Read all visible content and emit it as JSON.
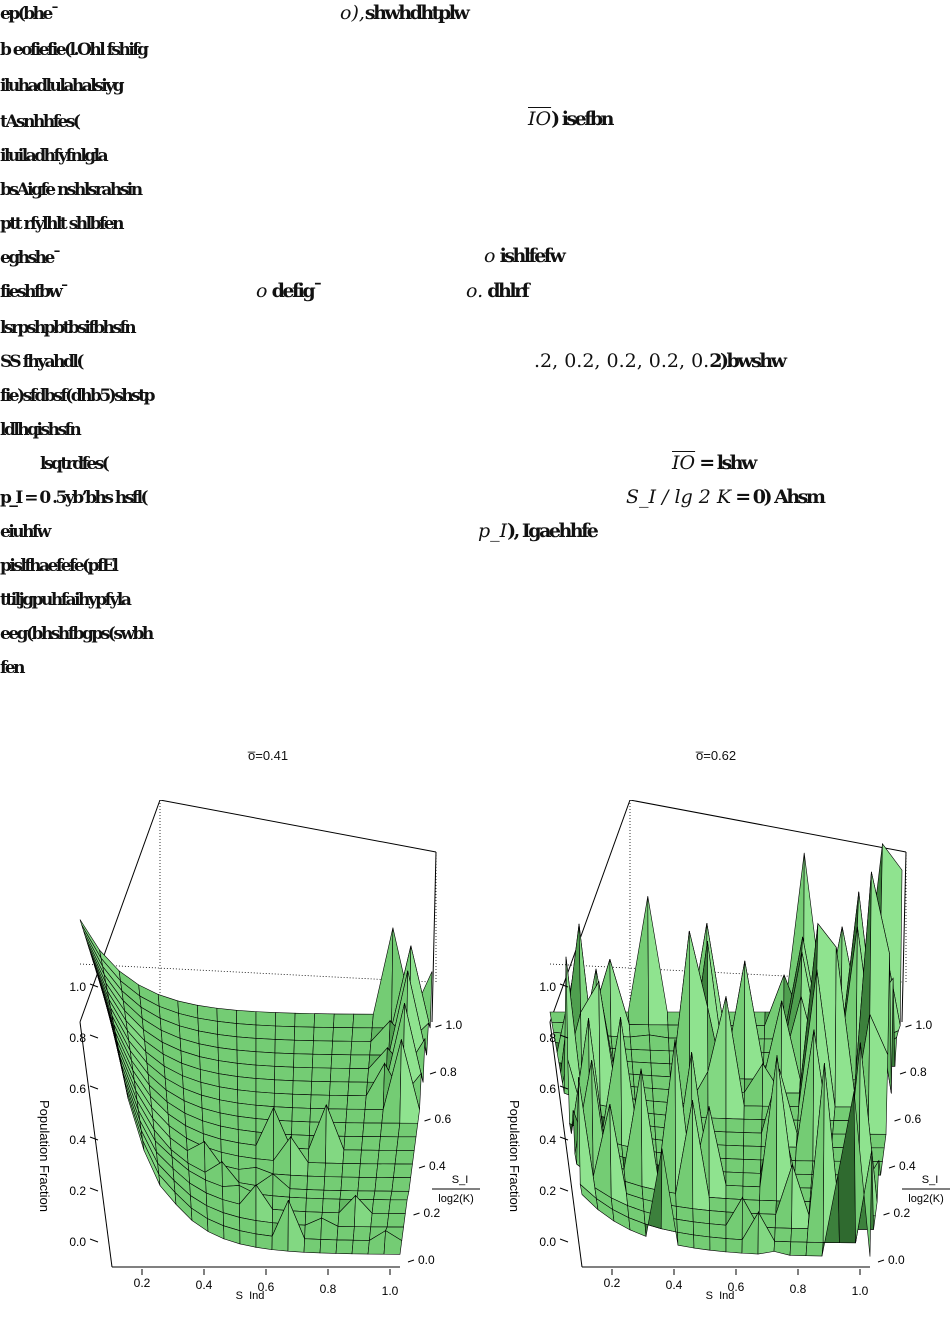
{
  "text_lines": [
    "ep(bhe¯",
    "b eofiefie(l.Ohl fshifg",
    "iluhadlulahalsiyg",
    "tAsnhhfes(",
    "iluiladhfyfnlgla",
    "bsAigfe nshlsrahsin",
    "ptt rfylhlt shlbfen",
    "eghshe¯",
    "fieshfbw¯",
    "lsrpshpbtbsifbhsfn",
    "SS fhyahdl(",
    "fie)sfdbsf(dhb5)shstp",
    "ldlhqishsfn",
    "lsqtrdfes(",
    "p_I = 0   .5yb’bhs hsfl(",
    "eiuhfw",
    "pislfhaefefe(pfEl",
    "ttiljgpuhfaihypfyla",
    "eeg(bhshfbgps(swbh",
    "fen"
  ],
  "math_spans": [
    {
      "prefix": "o),",
      "text": "shwhdhtplw"
    },
    {
      "prefix": "IO",
      "text": ") isefbn"
    },
    {
      "prefix": "o",
      "text": " ishlfefw"
    },
    {
      "prefix": "o",
      "text": " defig¯"
    },
    {
      "prefix": "o.",
      "text": " dhlrf"
    },
    {
      "prefix": ".2, 0.2, 0.2, 0.2, 0.",
      "text": "2)bwshw"
    },
    {
      "prefix": "IO",
      "text": " = lshw"
    },
    {
      "prefix": "S_I / lg  2 K",
      "text": " = 0) Ahsm"
    },
    {
      "prefix": "p_I",
      "text": "), Igaehhfe"
    }
  ],
  "charts": [
    {
      "title": "o̅=0.41",
      "zlabel": "Population Fraction",
      "xlabel_num": "S_Ind",
      "xlabel_den": "log2(K)",
      "ylabel_num": "S_I",
      "ylabel_den": "log2(K)",
      "z_ticks": [
        "0.0",
        "0.2",
        "0.4",
        "0.6",
        "0.8",
        "1.0"
      ],
      "x_ticks": [
        "0.2",
        "0.4",
        "0.6",
        "0.8",
        "1.0"
      ],
      "y_ticks": [
        "0.0",
        "0.2",
        "0.4",
        "0.6",
        "0.8",
        "1.0"
      ]
    },
    {
      "title": "o̅=0.62",
      "zlabel": "Population Fraction",
      "xlabel_num": "S_Ind",
      "xlabel_den": "log2(K)",
      "ylabel_num": "S_I",
      "ylabel_den": "log2(K)",
      "z_ticks": [
        "0.0",
        "0.2",
        "0.4",
        "0.6",
        "0.8",
        "1.0"
      ],
      "x_ticks": [
        "0.2",
        "0.4",
        "0.6",
        "0.8",
        "1.0"
      ],
      "y_ticks": [
        "0.0",
        "0.2",
        "0.4",
        "0.6",
        "0.8",
        "1.0"
      ]
    }
  ],
  "colors": {
    "surface_light": "#8fe38f",
    "surface_mid": "#6cc86c",
    "surface_dark": "#2f6a2f",
    "axis": "#000000"
  }
}
